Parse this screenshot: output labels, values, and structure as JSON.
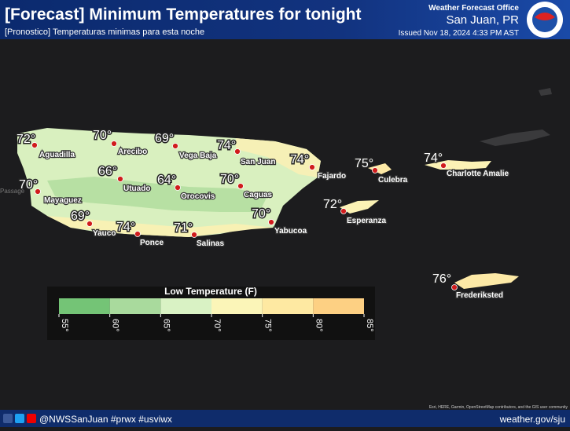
{
  "header": {
    "title": "[Forecast] Minimum Temperatures for tonight",
    "subtitle": "[Pronostico] Temperaturas minimas para esta noche",
    "office": "Weather Forecast Office",
    "location": "San Juan, PR",
    "issued": "Issued Nov 18, 2024 4:33 PM AST"
  },
  "map": {
    "water_label": "Passage",
    "cities": [
      {
        "temp": "72°",
        "name": "Aguadilla"
      },
      {
        "temp": "70°",
        "name": "Arecibo"
      },
      {
        "temp": "69°",
        "name": "Vega Baja"
      },
      {
        "temp": "74°",
        "name": "San Juan"
      },
      {
        "temp": "74°",
        "name": "Fajardo"
      },
      {
        "temp": "66°",
        "name": "Utuado"
      },
      {
        "temp": "64°",
        "name": "Orocovis"
      },
      {
        "temp": "70°",
        "name": "Caguas"
      },
      {
        "temp": "70°",
        "name": "Mayaguez"
      },
      {
        "temp": "69°",
        "name": "Yauco"
      },
      {
        "temp": "74°",
        "name": "Ponce"
      },
      {
        "temp": "71°",
        "name": "Salinas"
      },
      {
        "temp": "70°",
        "name": "Yabucoa"
      },
      {
        "temp": "75°",
        "name": "Culebra"
      },
      {
        "temp": "72°",
        "name": "Esperanza"
      },
      {
        "temp": "74°",
        "name": "Charlotte Amalie"
      },
      {
        "temp": "76°",
        "name": "Frederiksted"
      }
    ],
    "attribution": "Esri, HERE, Garmin, OpenStreetMap contributors, and the GIS user community"
  },
  "legend": {
    "title": "Low Temperature (F)",
    "ticks": [
      {
        "value": 55,
        "label": "55°"
      },
      {
        "value": 60,
        "label": "60°"
      },
      {
        "value": 65,
        "label": "65°"
      },
      {
        "value": 70,
        "label": "70°"
      },
      {
        "value": 75,
        "label": "75°"
      },
      {
        "value": 80,
        "label": "80°"
      },
      {
        "value": 85,
        "label": "85°"
      }
    ],
    "colors": [
      "#74c476",
      "#a9da9d",
      "#d9f2c4",
      "#fbf5b8",
      "#fee9a2",
      "#fdd083"
    ]
  },
  "footer": {
    "handle": "@NWSSanJuan #prwx #usviwx",
    "url": "weather.gov/sju"
  }
}
